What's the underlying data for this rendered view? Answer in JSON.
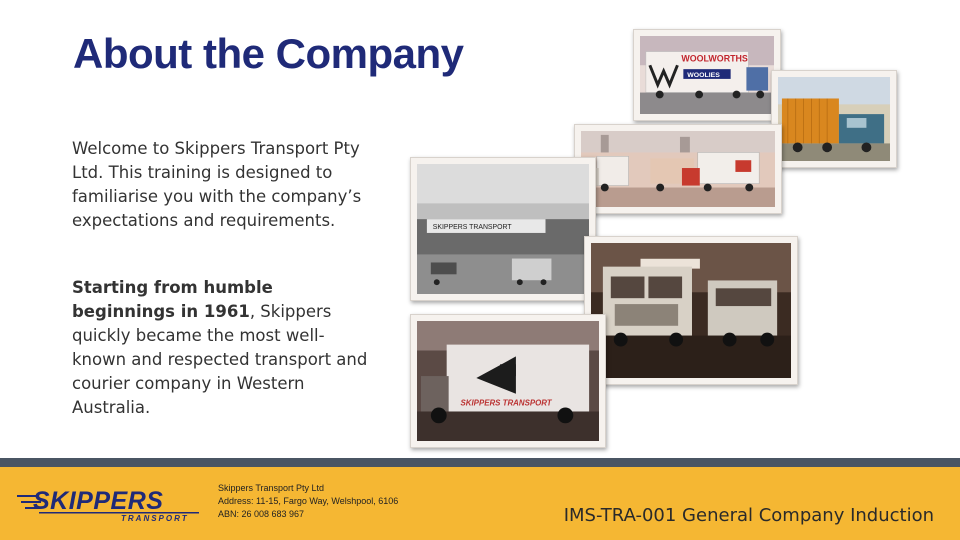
{
  "slide": {
    "title": "About the Company",
    "intro": "Welcome to Skippers Transport Pty Ltd. This training is designed to familiarise you with the company’s expectations and requirements.",
    "history_bold": "Starting from humble beginnings in 1961",
    "history_rest": ", Skippers quickly became the most well-known and respected transport and courier company in Western Australia."
  },
  "photos": {
    "woolworths": {
      "sign_top": "WOOLWORTHS",
      "sign_bottom": "WOOLIES"
    },
    "depot": {
      "sign": "SKIPPERS TRANSPORT"
    },
    "van": {
      "sign": "SKIPPERS TRANSPORT"
    }
  },
  "footer": {
    "logo_main": "SKIPPERS",
    "logo_sub": "TRANSPORT",
    "company_name": "Skippers Transport Pty Ltd",
    "address": "Address: 11-15, Fargo Way, Welshpool, 6106",
    "abn": "ABN: 26 008 683 967",
    "doc_id": "IMS-TRA-001 General Company Induction"
  },
  "colors": {
    "title": "#1f2a78",
    "footer_bar": "#f5b733",
    "footer_strip": "#4a5563",
    "logo_blue": "#1f2a78"
  }
}
